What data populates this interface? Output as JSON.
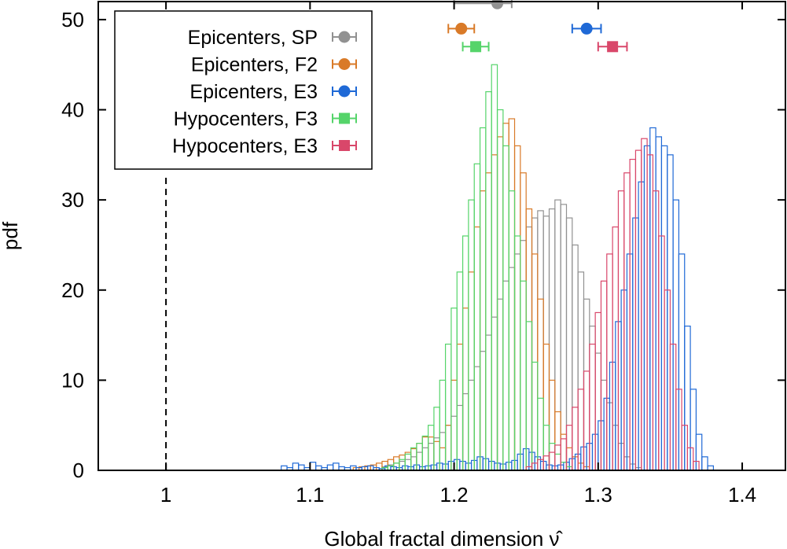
{
  "chart_data": {
    "type": "histogram",
    "xlabel": "Global fractal dimension  ν̂",
    "ylabel": "pdf",
    "xlim": [
      0.953,
      1.43
    ],
    "ylim": [
      0,
      52
    ],
    "x_ticks": [
      {
        "value": 1.0,
        "label": "1"
      },
      {
        "value": 1.1,
        "label": "1.1"
      },
      {
        "value": 1.2,
        "label": "1.2"
      },
      {
        "value": 1.3,
        "label": "1.3"
      },
      {
        "value": 1.4,
        "label": "1.4"
      }
    ],
    "y_ticks": [
      {
        "value": 0,
        "label": "0"
      },
      {
        "value": 10,
        "label": "10"
      },
      {
        "value": 20,
        "label": "20"
      },
      {
        "value": 30,
        "label": "30"
      },
      {
        "value": 40,
        "label": "40"
      },
      {
        "value": 50,
        "label": "50"
      }
    ],
    "reference_line": {
      "x": 1.0,
      "style": "dashed",
      "y_from": 0,
      "y_to": 32.5
    },
    "legend_position": "top-left",
    "grid": false,
    "series": [
      {
        "name": "Epicenters, SP",
        "color": "#919191",
        "marker": "circle",
        "point": {
          "x": 1.23,
          "y": 51.8,
          "xerr_low": 1.2,
          "xerr_high": 1.24
        },
        "histogram": {
          "start": 1.15,
          "width": 0.004,
          "values": [
            0.4,
            0.6,
            0.8,
            1.0,
            1.2,
            1.5,
            2.0,
            2.5,
            3.0,
            3.6,
            4.2,
            5.0,
            6.0,
            7.2,
            8.5,
            10.0,
            11.5,
            13.2,
            15.0,
            17.0,
            19.0,
            21.0,
            22.5,
            24.0,
            25.5,
            27.0,
            28.0,
            28.8,
            28.2,
            29.0,
            30.0,
            29.5,
            28.0,
            25.0,
            22.0,
            19.0,
            16.0,
            13.0,
            10.0,
            7.5,
            5.0,
            3.0,
            1.5,
            0.7,
            0.3
          ]
        }
      },
      {
        "name": "Epicenters, F2",
        "color": "#d97a28",
        "marker": "circle",
        "point": {
          "x": 1.205,
          "y": 49.0,
          "xerr_low": 1.196,
          "xerr_high": 1.214
        },
        "histogram": {
          "start": 1.13,
          "width": 0.004,
          "values": [
            0.3,
            0.4,
            0.5,
            0.6,
            0.8,
            1.0,
            1.2,
            1.5,
            1.7,
            2.0,
            2.4,
            3.0,
            3.7,
            3.7,
            3.2,
            2.5,
            5.0,
            10.0,
            14.0,
            18.0,
            22.0,
            27.0,
            31.0,
            33.0,
            35.0,
            37.0,
            38.5,
            39.0,
            36.0,
            33.0,
            29.0,
            24.0,
            19.0,
            14.0,
            10.0,
            6.5,
            4.0,
            2.5,
            1.5,
            0.8,
            0.4
          ]
        }
      },
      {
        "name": "Epicenters, E3",
        "color": "#1f69d6",
        "marker": "circle",
        "point": {
          "x": 1.292,
          "y": 49.0,
          "xerr_low": 1.282,
          "xerr_high": 1.302
        },
        "histogram": {
          "start": 1.08,
          "width": 0.004,
          "values": [
            0.5,
            0.3,
            0.8,
            0.6,
            0.3,
            0.9,
            0.5,
            0.3,
            0.6,
            0.8,
            0.4,
            0.3,
            0.5,
            0.3,
            0.4,
            0.5,
            0.3,
            0.2,
            0.5,
            0.4,
            0.3,
            0.5,
            0.4,
            0.6,
            0.4,
            0.5,
            0.6,
            0.8,
            0.7,
            1.0,
            1.2,
            1.0,
            0.8,
            1.1,
            1.5,
            1.3,
            1.0,
            0.8,
            0.7,
            0.9,
            1.1,
            1.8,
            2.4,
            2.0,
            1.5,
            1.0,
            0.6,
            0.5,
            0.6,
            0.9,
            1.3,
            1.8,
            2.6,
            3.0,
            4.0,
            5.5,
            8.0,
            12.0,
            16.5,
            20.0,
            24.0,
            28.0,
            32.0,
            36.0,
            38.0,
            37.0,
            36.0,
            35.0,
            30.0,
            24.0,
            16.0,
            9.0,
            4.0,
            1.5,
            0.5
          ]
        }
      },
      {
        "name": "Hypocenters, F3",
        "color": "#55d46a",
        "marker": "square",
        "point": {
          "x": 1.215,
          "y": 47.0,
          "xerr_low": 1.206,
          "xerr_high": 1.224
        },
        "histogram": {
          "start": 1.15,
          "width": 0.004,
          "values": [
            0.3,
            0.5,
            0.8,
            1.2,
            1.8,
            2.5,
            3.0,
            3.8,
            5.0,
            7.0,
            10.0,
            14.0,
            18.0,
            22.0,
            26.0,
            30.0,
            34.0,
            38.0,
            42.0,
            45.0,
            40.0,
            36.0,
            31.0,
            26.0,
            21.0,
            16.5,
            12.0,
            8.0,
            5.0,
            3.0,
            1.8,
            0.9,
            0.4
          ]
        }
      },
      {
        "name": "Hypocenters, E3",
        "color": "#d9476a",
        "marker": "square",
        "point": {
          "x": 1.31,
          "y": 47.0,
          "xerr_low": 1.3,
          "xerr_high": 1.32
        },
        "histogram": {
          "start": 1.25,
          "width": 0.004,
          "values": [
            0.4,
            0.8,
            1.2,
            1.6,
            2.0,
            2.8,
            3.5,
            5.0,
            7.0,
            9.0,
            11.0,
            14.0,
            17.5,
            21.0,
            24.0,
            27.0,
            31.0,
            33.0,
            34.5,
            35.5,
            36.8,
            35.0,
            31.0,
            26.0,
            20.0,
            14.0,
            9.0,
            5.0,
            2.5,
            1.0
          ]
        }
      }
    ]
  }
}
